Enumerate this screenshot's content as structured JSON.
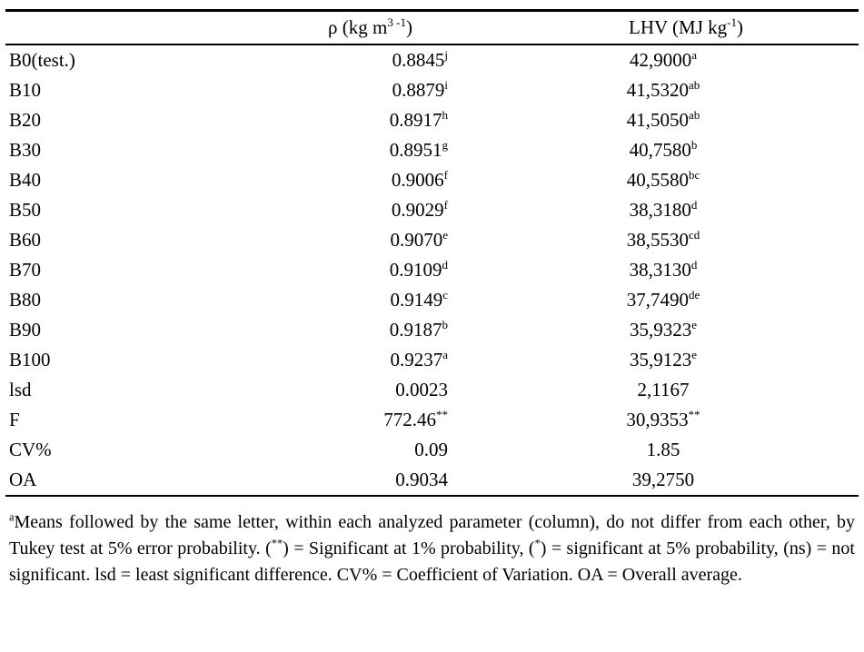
{
  "table": {
    "header": {
      "col1": "",
      "col2_main": "ρ (kg m",
      "col2_sup": "3 -1",
      "col2_end": ")",
      "col3_main": "LHV (MJ kg",
      "col3_sup": "-1",
      "col3_end": ")"
    },
    "rows": [
      {
        "label": "B0(test.)",
        "rho": "0.8845",
        "rho_sup": "j",
        "lhv": "42,9000",
        "lhv_sup": "a"
      },
      {
        "label": "B10",
        "rho": "0.8879",
        "rho_sup": "i",
        "lhv": "41,5320",
        "lhv_sup": "ab"
      },
      {
        "label": "B20",
        "rho": "0.8917",
        "rho_sup": "h",
        "lhv": "41,5050",
        "lhv_sup": "ab"
      },
      {
        "label": "B30",
        "rho": "0.8951",
        "rho_sup": "g",
        "lhv": "40,7580",
        "lhv_sup": "b"
      },
      {
        "label": "B40",
        "rho": "0.9006",
        "rho_sup": "f",
        "lhv": "40,5580",
        "lhv_sup": "bc"
      },
      {
        "label": "B50",
        "rho": "0.9029",
        "rho_sup": "f",
        "lhv": "38,3180",
        "lhv_sup": "d"
      },
      {
        "label": "B60",
        "rho": "0.9070",
        "rho_sup": "e",
        "lhv": "38,5530",
        "lhv_sup": "cd"
      },
      {
        "label": "B70",
        "rho": "0.9109",
        "rho_sup": "d",
        "lhv": "38,3130",
        "lhv_sup": "d"
      },
      {
        "label": "B80",
        "rho": "0.9149",
        "rho_sup": "c",
        "lhv": "37,7490",
        "lhv_sup": "de"
      },
      {
        "label": "B90",
        "rho": "0.9187",
        "rho_sup": "b",
        "lhv": "35,9323",
        "lhv_sup": "e"
      },
      {
        "label": "B100",
        "rho": "0.9237",
        "rho_sup": "a",
        "lhv": "35,9123",
        "lhv_sup": "e"
      },
      {
        "label": "lsd",
        "rho": "0.0023",
        "rho_sup": "",
        "lhv": "2,1167",
        "lhv_sup": ""
      },
      {
        "label": "F",
        "rho": "772.46",
        "rho_sup": "**",
        "lhv": "30,9353",
        "lhv_sup": "**"
      },
      {
        "label": "CV%",
        "rho": "0.09",
        "rho_sup": "",
        "lhv": "1.85",
        "lhv_sup": ""
      },
      {
        "label": "OA",
        "rho": "0.9034",
        "rho_sup": "",
        "lhv": "39,2750",
        "lhv_sup": ""
      }
    ]
  },
  "footnote": {
    "seg1_sup": "a",
    "seg2": "Means followed by the same letter, within each analyzed parameter (column), do not differ from each other, by Tukey test at 5% error probability. (",
    "seg3_sup": "**",
    "seg4": ") = Significant at 1% probability, (",
    "seg5_sup": "*",
    "seg6": ") = significant at 5% probability, (ns) = not significant. lsd = least significant difference. CV% = Coefficient of Variation. OA = Overall average."
  }
}
